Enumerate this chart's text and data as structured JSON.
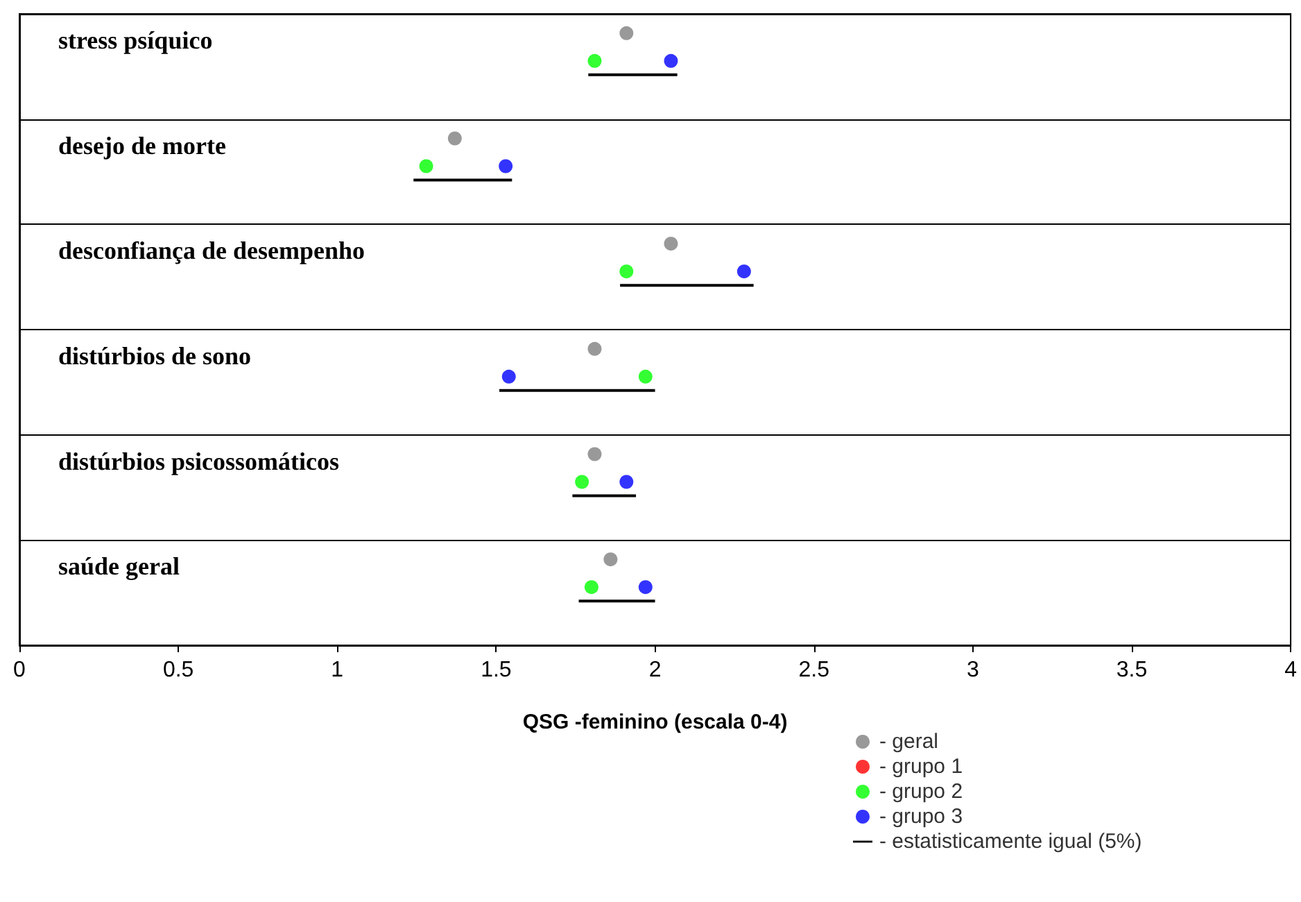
{
  "chart_data": {
    "type": "scatter",
    "orientation": "horizontal",
    "xlabel": "QSG -feminino (escala 0-4)",
    "categories": [
      "stress psíquico",
      "desejo de morte",
      "desconfiança de desempenho",
      "distúrbios de sono",
      "distúrbios psicossomáticos",
      "saúde geral"
    ],
    "xlim": [
      0,
      4
    ],
    "xticks": [
      0,
      0.5,
      1,
      1.5,
      2,
      2.5,
      3,
      3.5,
      4
    ],
    "grid": "y",
    "legend": "bottom right",
    "marker": "circle",
    "series": [
      {
        "name": "- geral",
        "color": "#808080",
        "values": [
          1.91,
          1.37,
          2.05,
          1.81,
          1.81,
          1.86
        ]
      },
      {
        "name": "- grupo 1",
        "color": "#ff0000",
        "values": [
          null,
          null,
          null,
          null,
          null,
          null
        ]
      },
      {
        "name": "- grupo 2",
        "color": "#00ff00",
        "values": [
          1.81,
          1.28,
          1.91,
          1.97,
          1.77,
          1.8
        ]
      },
      {
        "name": "- grupo 3",
        "color": "#0000ff",
        "values": [
          2.05,
          1.53,
          2.28,
          1.54,
          1.91,
          1.97
        ]
      },
      {
        "name": "- estatisticamente igual (5%)",
        "type": "bar",
        "color": "#000000",
        "base": [
          1.79,
          1.24,
          1.89,
          1.51,
          1.74,
          1.76
        ],
        "values": [
          0.28,
          0.31,
          0.42,
          0.49,
          0.2,
          0.24
        ]
      }
    ]
  }
}
